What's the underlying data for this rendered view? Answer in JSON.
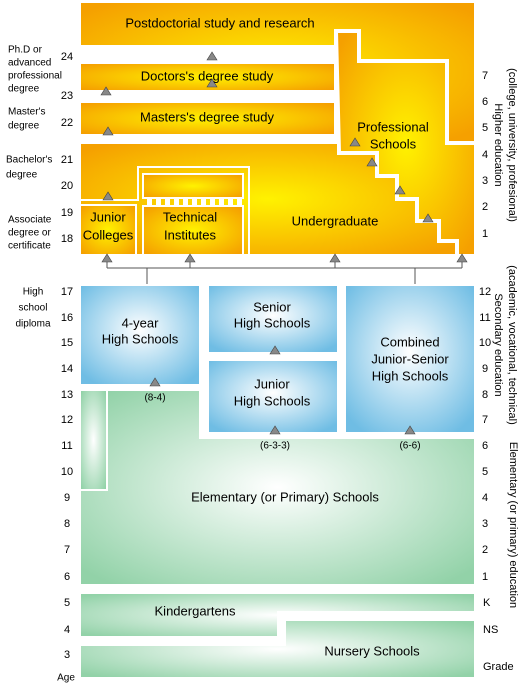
{
  "left_labels": [
    [
      "Ph.D or",
      "advanced",
      "professional",
      "degree"
    ],
    [
      "Master's",
      "degree"
    ],
    [
      "Bachelor's",
      "degree"
    ],
    [
      "Associate",
      "degree or",
      "certificate"
    ],
    [
      "High",
      "school",
      "diploma"
    ]
  ],
  "ages": [
    24,
    23,
    22,
    21,
    20,
    19,
    18,
    17,
    16,
    15,
    14,
    13,
    12,
    11,
    10,
    9,
    8,
    7,
    6,
    5,
    4,
    3,
    "Age"
  ],
  "grades": [
    7,
    6,
    5,
    4,
    3,
    2,
    1,
    12,
    11,
    10,
    9,
    8,
    7,
    6,
    5,
    4,
    3,
    2,
    1,
    "K",
    "NS",
    "Grade"
  ],
  "sections": [
    [
      "Higher education",
      "(college, university, profesional)"
    ],
    [
      "Secondary education",
      "(academic, vocational, technical)"
    ],
    [
      "Elementary (or primary) education"
    ]
  ],
  "boxes": [
    [
      "Postdoctorial study and research"
    ],
    [
      "Doctors's degree study"
    ],
    [
      "Masters's degree study"
    ],
    [
      "Professional",
      "Schools"
    ],
    [
      "Junior",
      "Colleges"
    ],
    [
      "Technical",
      "Institutes"
    ],
    [
      "Undergraduate"
    ],
    [
      "4-year",
      "High Schools"
    ],
    [
      "Senior",
      "High Schools"
    ],
    [
      "Junior",
      "High Schools"
    ],
    [
      "Combined",
      "Junior-Senior",
      "High Schools"
    ],
    [
      "(8-4)"
    ],
    [
      "(6-3-3)"
    ],
    [
      "(6-6)"
    ],
    [
      "Elementary (or Primary) Schools"
    ],
    [
      "Kindergartens"
    ],
    [
      "Nursery Schools"
    ]
  ]
}
